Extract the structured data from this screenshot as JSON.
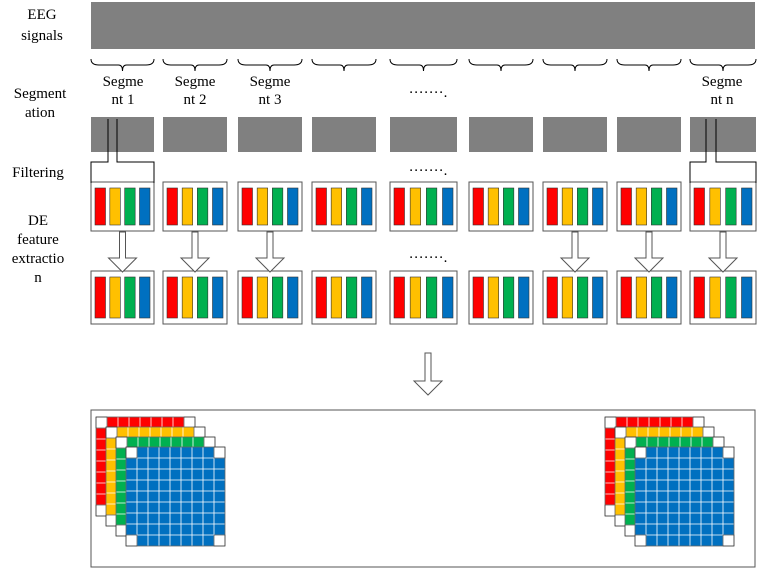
{
  "row_labels": {
    "eeg": [
      "EEG",
      "signals"
    ],
    "segmentation": [
      "Segment",
      "ation"
    ],
    "filtering": "Filtering",
    "de": [
      "DE",
      "feature",
      "extractio",
      "n"
    ]
  },
  "segment_labels": [
    [
      "Segme",
      "nt 1"
    ],
    [
      "Segme",
      "nt 2"
    ],
    [
      "Segme",
      "nt 3"
    ],
    [
      "Segme",
      "nt n"
    ]
  ],
  "ellipsis": "·······.",
  "colors": {
    "signal_gray": "#808080",
    "bands": [
      "#ff0000",
      "#ffc000",
      "#00b050",
      "#0070c0"
    ],
    "grid_blue": "#0070c0"
  }
}
